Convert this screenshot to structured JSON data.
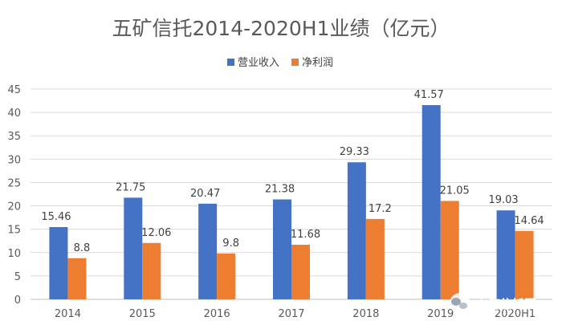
{
  "chart_data": {
    "type": "bar",
    "title": "五矿信托2014-2020H1业绩（亿元）",
    "categories": [
      "2014",
      "2015",
      "2016",
      "2017",
      "2018",
      "2019",
      "2020H1"
    ],
    "series": [
      {
        "name": "营业收入",
        "color": "#4472c4",
        "values": [
          15.46,
          21.75,
          20.47,
          21.38,
          29.33,
          41.57,
          19.03
        ]
      },
      {
        "name": "净利润",
        "color": "#ed7d31",
        "values": [
          8.8,
          12.06,
          9.8,
          11.68,
          17.2,
          21.05,
          14.64
        ]
      }
    ],
    "ylim": [
      0,
      45
    ],
    "yticks": [
      "0",
      "5",
      "10",
      "15",
      "20",
      "25",
      "30",
      "35",
      "40",
      "45"
    ],
    "grid": true,
    "legend_position": "top-center"
  },
  "watermark": {
    "text": "上海信托圈",
    "icon": "wechat-icon"
  }
}
